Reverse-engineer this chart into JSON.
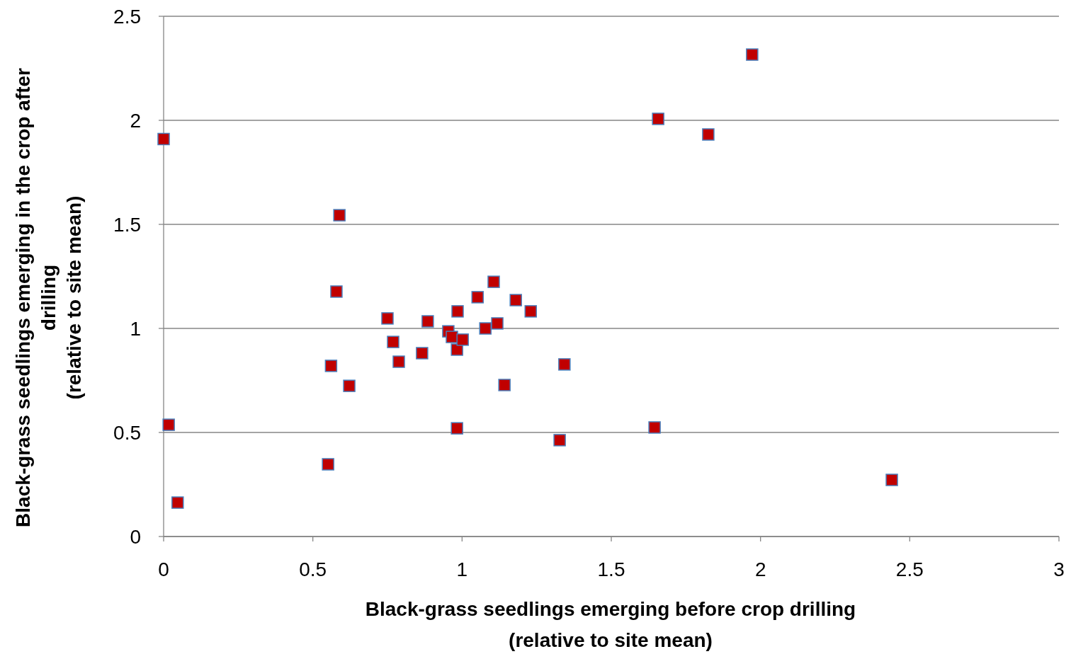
{
  "chart_data": {
    "type": "scatter",
    "xlabel": "Black-grass seedlings emerging before crop drilling\n(relative to site mean)",
    "ylabel": "Black-grass seedlings emerging in the crop after\ndrilling\n(relative to site mean)",
    "x": [
      0,
      0.017,
      0.047,
      0.551,
      0.561,
      0.579,
      0.589,
      0.622,
      0.75,
      0.769,
      0.788,
      0.866,
      0.885,
      0.954,
      0.966,
      0.983,
      0.983,
      0.985,
      1.002,
      1.052,
      1.078,
      1.106,
      1.118,
      1.142,
      1.18,
      1.23,
      1.327,
      1.343,
      1.645,
      1.657,
      1.825,
      1.972,
      2.44
    ],
    "series": [
      {
        "color": "#c00000",
        "values": [
          1.91,
          0.537,
          0.163,
          0.347,
          0.82,
          1.177,
          1.544,
          0.724,
          1.048,
          0.935,
          0.84,
          0.881,
          1.034,
          0.986,
          0.959,
          0.898,
          0.52,
          1.082,
          0.946,
          1.15,
          1.0,
          1.224,
          1.024,
          0.728,
          1.136,
          1.082,
          0.463,
          0.827,
          0.524,
          2.007,
          1.932,
          2.316,
          0.272
        ]
      }
    ],
    "xlim": [
      0,
      3
    ],
    "xticks": [
      0,
      0.5,
      1,
      1.5,
      2,
      2.5,
      3
    ],
    "ylim": [
      0,
      2.5
    ],
    "yticks": [
      0,
      0.5,
      1,
      1.5,
      2,
      2.5
    ],
    "grid": "y",
    "marker": "square"
  }
}
